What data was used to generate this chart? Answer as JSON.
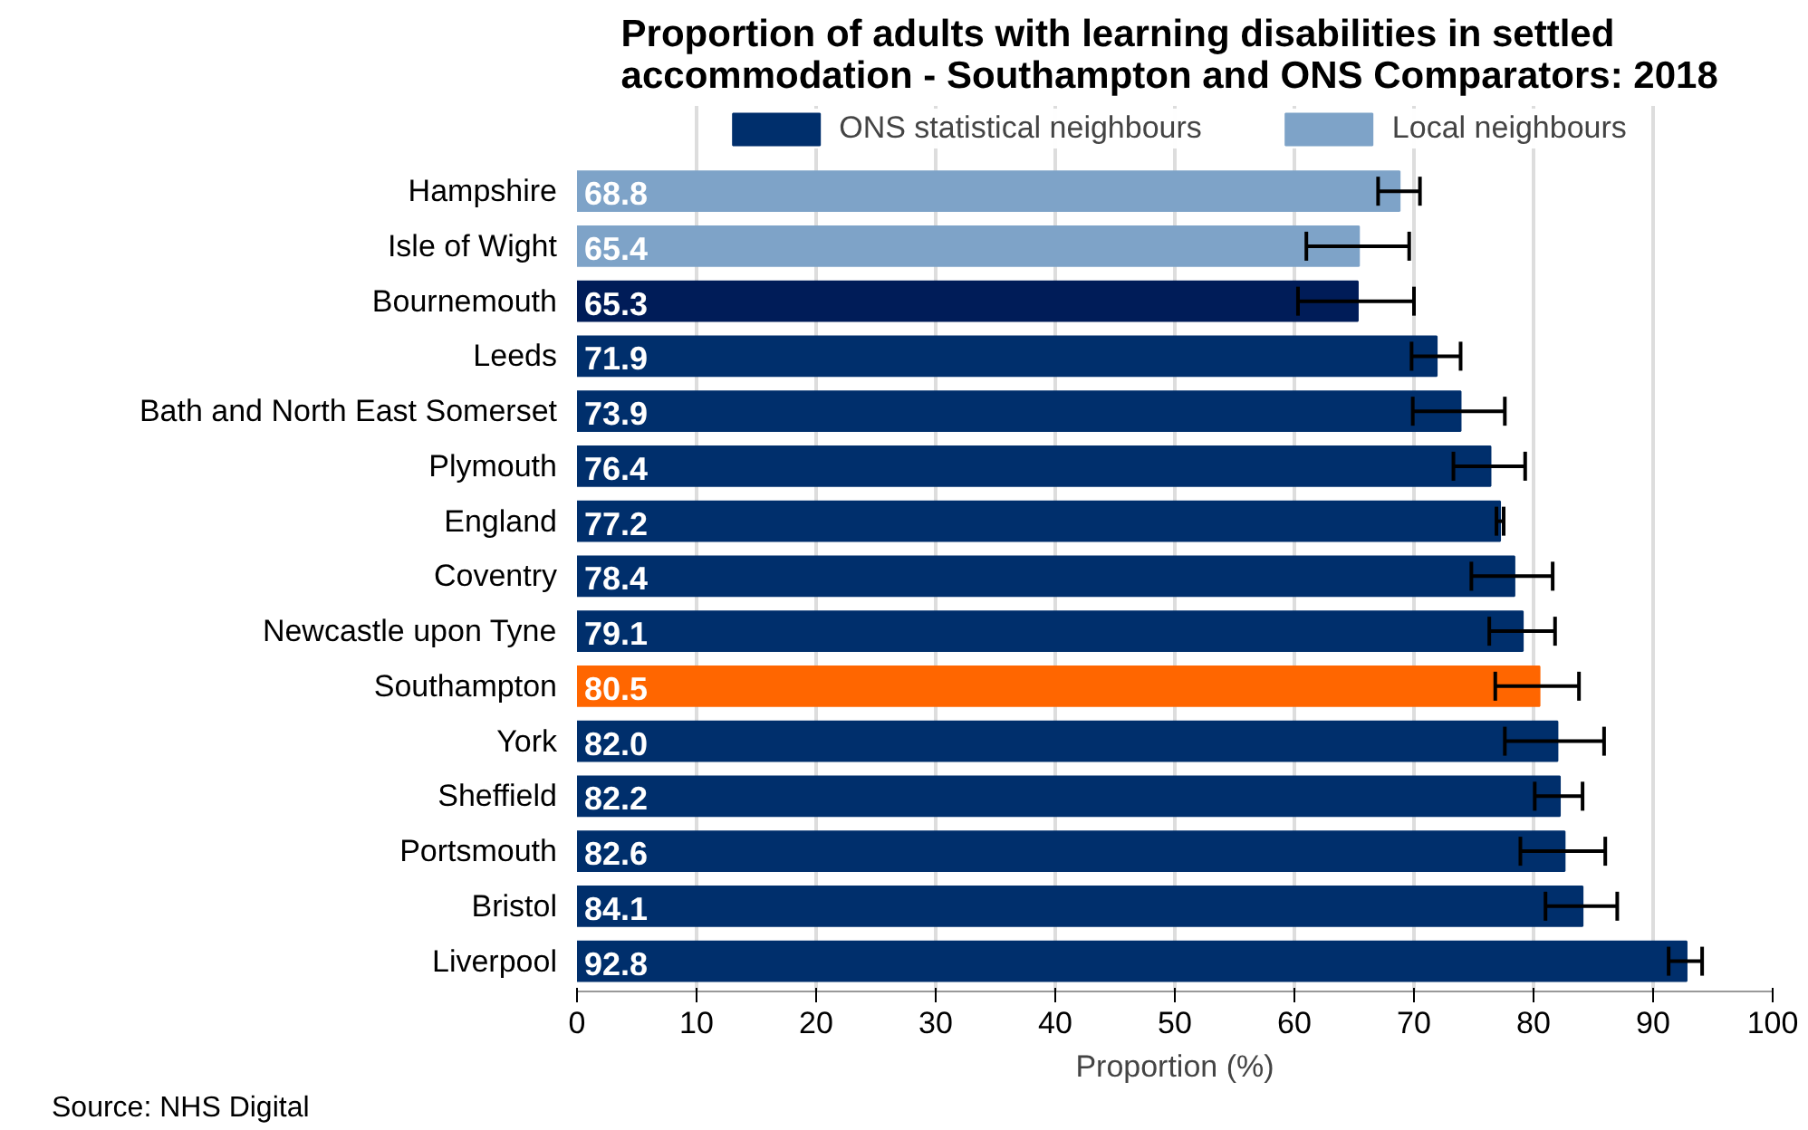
{
  "chart_data": {
    "type": "bar",
    "orientation": "horizontal",
    "title": "Proportion of adults with learning disabilities in settled\naccommodation -  Southampton and ONS Comparators: 2018",
    "xlabel": "Proportion (%)",
    "annotations": [
      "Source: NHS Digital"
    ],
    "categories": [
      "Hampshire",
      "Isle of Wight",
      "Bournemouth",
      "Leeds",
      "Bath and North East Somerset",
      "Plymouth",
      "England",
      "Coventry",
      "Newcastle upon Tyne",
      "Southampton",
      "York",
      "Sheffield",
      "Portsmouth",
      "Bristol",
      "Liverpool"
    ],
    "series": [
      {
        "name": "ONS statistical neighbours",
        "color": "#002f6c",
        "colors": [
          null,
          null,
          "#001c58",
          "#002f6c",
          "#002f6c",
          "#002f6c",
          "#002f6c",
          "#002f6c",
          "#002f6c",
          "#ff6600",
          "#002f6c",
          "#002f6c",
          "#002f6c",
          "#002f6c",
          "#002f6c"
        ],
        "values": [
          null,
          null,
          65.3,
          71.9,
          73.9,
          76.4,
          77.2,
          78.4,
          79.1,
          80.5,
          82.0,
          82.2,
          82.6,
          84.1,
          92.8
        ],
        "errors": [
          null,
          null,
          [
            60.3,
            70.0
          ],
          [
            69.8,
            73.9
          ],
          [
            69.9,
            77.6
          ],
          [
            73.3,
            79.3
          ],
          [
            76.9,
            77.5
          ],
          [
            74.8,
            81.6
          ],
          [
            76.3,
            81.8
          ],
          [
            76.8,
            83.8
          ],
          [
            77.6,
            85.9
          ],
          [
            80.1,
            84.1
          ],
          [
            78.9,
            86.0
          ],
          [
            81.0,
            87.0
          ],
          [
            91.3,
            94.1
          ]
        ],
        "value_labels": [
          null,
          null,
          "65.3",
          "71.9",
          "73.9",
          "76.4",
          "77.2",
          "78.4",
          "79.1",
          "80.5",
          "82.0",
          "82.2",
          "82.6",
          "84.1",
          "92.8"
        ]
      },
      {
        "name": "Local neighbours",
        "color": "#7ea3c8",
        "values": [
          68.8,
          65.4,
          null,
          null,
          null,
          null,
          null,
          null,
          null,
          null,
          null,
          null,
          null,
          null,
          null
        ],
        "errors": [
          [
            67.0,
            70.5
          ],
          [
            61.0,
            69.6
          ],
          null,
          null,
          null,
          null,
          null,
          null,
          null,
          null,
          null,
          null,
          null,
          null,
          null
        ],
        "value_labels": [
          "68.8",
          "65.4",
          null,
          null,
          null,
          null,
          null,
          null,
          null,
          null,
          null,
          null,
          null,
          null,
          null
        ]
      }
    ],
    "xlim": [
      0,
      100
    ],
    "xticks": [
      0,
      10,
      20,
      30,
      40,
      50,
      60,
      70,
      80,
      90,
      100
    ],
    "grid": "x",
    "legend": "top"
  }
}
